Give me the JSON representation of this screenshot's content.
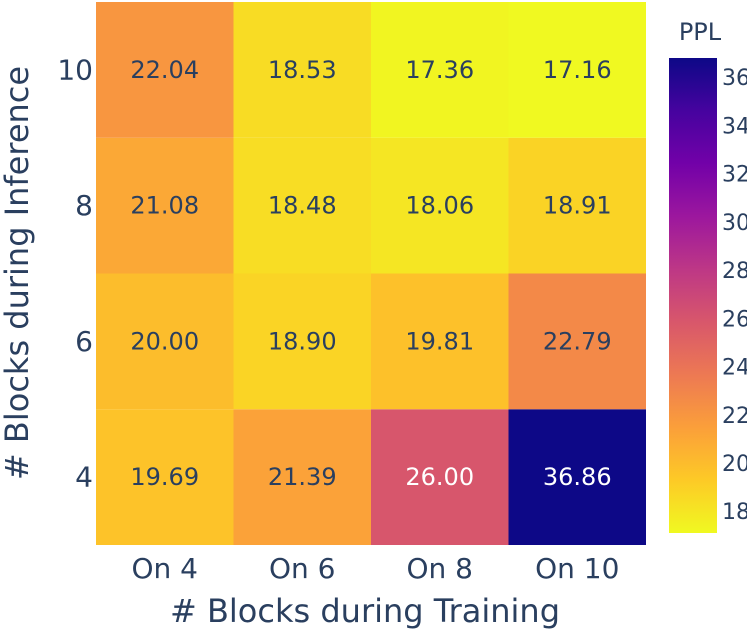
{
  "chart_data": {
    "type": "heatmap",
    "xlabel": "# Blocks during Training",
    "ylabel": "# Blocks during Inference",
    "x_categories": [
      "On 4",
      "On 6",
      "On 8",
      "On 10"
    ],
    "y_categories": [
      "4",
      "6",
      "8",
      "10"
    ],
    "z": [
      [
        19.69,
        21.39,
        26.0,
        36.86
      ],
      [
        20.0,
        18.9,
        19.81,
        22.79
      ],
      [
        21.08,
        18.48,
        18.06,
        18.91
      ],
      [
        22.04,
        18.53,
        17.36,
        17.16
      ]
    ],
    "cell_text": [
      [
        "19.69",
        "21.39",
        "26.00",
        "36.86"
      ],
      [
        "20.00",
        "18.90",
        "19.81",
        "22.79"
      ],
      [
        "21.08",
        "18.48",
        "18.06",
        "18.91"
      ],
      [
        "22.04",
        "18.53",
        "17.36",
        "17.16"
      ]
    ],
    "colorbar": {
      "title": "PPL",
      "range": [
        17.16,
        36.86
      ],
      "ticks": [
        "18",
        "20",
        "22",
        "24",
        "26",
        "28",
        "30",
        "32",
        "34",
        "36"
      ],
      "colorscale": "plasma-reversed"
    }
  }
}
